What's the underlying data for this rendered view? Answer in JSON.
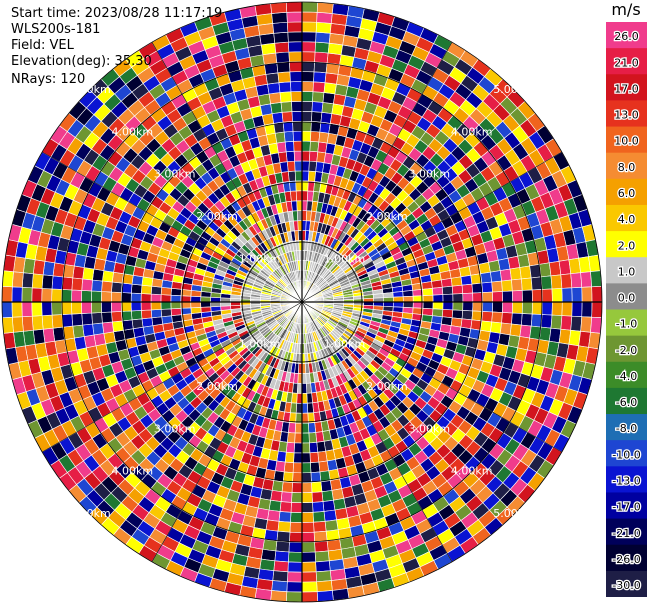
{
  "header": {
    "start_time": "Start time: 2023/08/28 11:17:19",
    "site": "WLS200s-181",
    "field": "Field: VEL",
    "elevation": "Elevation(deg): 35.30",
    "nrays": "NRays: 120"
  },
  "chart_data": {
    "type": "heatmap",
    "subtype": "polar-ppi",
    "field": "VEL",
    "units": "m/s",
    "n_rays": 120,
    "range_rings_labels": [
      "1.00km",
      "2.00km",
      "3.00km",
      "4.00km",
      "5.00km"
    ],
    "ring_label_angles_deg": [
      45,
      135,
      225,
      315
    ],
    "colorbar": {
      "unit": "m/s",
      "tick_labels": [
        "26.0",
        "21.0",
        "17.0",
        "13.0",
        "10.0",
        "8.0",
        "6.0",
        "4.0",
        "2.0",
        "1.0",
        "0.0",
        "-1.0",
        "-2.0",
        "-4.0",
        "-6.0",
        "-8.0",
        "-10.0",
        "-13.0",
        "-17.0",
        "-21.0",
        "-26.0",
        "-30.0"
      ],
      "colors_top_to_bottom": [
        "#f03c8c",
        "#e61e46",
        "#d2141e",
        "#e6321e",
        "#f0641e",
        "#f58c32",
        "#f5a000",
        "#fac800",
        "#ffff00",
        "#c8c8c8",
        "#8c8c8c",
        "#96c83c",
        "#6e9632",
        "#3c8c28",
        "#1e7832",
        "#1e6eb4",
        "#1e46d2",
        "#0a14d2",
        "#0000a0",
        "#00005a",
        "#000032",
        "#1e1e46"
      ],
      "range": [
        -30.0,
        30.0
      ]
    },
    "grid": true
  }
}
